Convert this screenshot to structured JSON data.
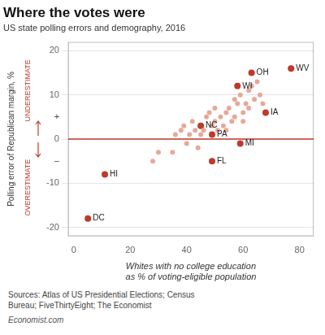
{
  "chart_data": {
    "type": "scatter",
    "title": "Where the votes were",
    "subtitle": "US state polling errors and demography, 2016",
    "xlabel": "Whites with no college education\nas % of voting-eligible population",
    "ylabel": "Polling error of Republican margin, %",
    "source": "Sources: Atlas of US Presidential Elections; Census\nBureau; FiveThirtyEight; The Economist",
    "footer": "Economist.com",
    "x": [
      5,
      11,
      45,
      49,
      49,
      59,
      58,
      63,
      68,
      77,
      28,
      30,
      35,
      36,
      38,
      39,
      40,
      41,
      42,
      43,
      44,
      45,
      46,
      47,
      48,
      49,
      50,
      50,
      51,
      52,
      53,
      54,
      54,
      55,
      56,
      57,
      57,
      58,
      59,
      60,
      60,
      61,
      62,
      62,
      63,
      64,
      65,
      66,
      67
    ],
    "values": [
      -18,
      -8,
      3,
      1,
      -5,
      -1,
      12,
      15,
      6,
      16,
      -5,
      -3,
      -3,
      1,
      2,
      3,
      -1,
      1,
      4,
      2,
      -2,
      1,
      2,
      5,
      6,
      3,
      4,
      7,
      2,
      5,
      3,
      6,
      2,
      7,
      4,
      9,
      5,
      8,
      10,
      6,
      4,
      8,
      11,
      7,
      12,
      9,
      13,
      10,
      8
    ],
    "colors": [
      "#c0392b",
      "#c0392b",
      "#c0392b",
      "#c0392b",
      "#c0392b",
      "#c0392b",
      "#c0392b",
      "#c0392b",
      "#c0392b",
      "#c0392b",
      "#e8a898",
      "#e8a898",
      "#e8a898",
      "#e8a898",
      "#e8a898",
      "#e8a898",
      "#e8a898",
      "#e8a898",
      "#e8a898",
      "#e8a898",
      "#e8a898",
      "#e8a898",
      "#e8a898",
      "#e8a898",
      "#e8a898",
      "#e8a898",
      "#e8a898",
      "#e8a898",
      "#e8a898",
      "#e8a898",
      "#e8a898",
      "#e8a898",
      "#e8a898",
      "#e8a898",
      "#e8a898",
      "#e8a898",
      "#e8a898",
      "#e8a898",
      "#e8a898",
      "#e8a898",
      "#e8a898",
      "#e8a898",
      "#e8a898",
      "#e8a898",
      "#e8a898",
      "#e8a898",
      "#e8a898",
      "#e8a898",
      "#e8a898"
    ],
    "xlim": [
      -2,
      85
    ],
    "ylim": [
      -22,
      22
    ],
    "xticks": [
      0,
      20,
      40,
      60,
      80
    ],
    "yticks": [
      -20,
      -10,
      0,
      10,
      20
    ],
    "grid": "y",
    "reference_line": {
      "y": 0,
      "color": "#c0392b"
    },
    "annotations": [
      {
        "text": "DC",
        "x": 5,
        "y": -18
      },
      {
        "text": "HI",
        "x": 11,
        "y": -8
      },
      {
        "text": "NC",
        "x": 45,
        "y": 3
      },
      {
        "text": "PA",
        "x": 49,
        "y": 1
      },
      {
        "text": "FL",
        "x": 49,
        "y": -5
      },
      {
        "text": "MI",
        "x": 59,
        "y": -1
      },
      {
        "text": "WI",
        "x": 58,
        "y": 12
      },
      {
        "text": "OH",
        "x": 63,
        "y": 15
      },
      {
        "text": "IA",
        "x": 68,
        "y": 6
      },
      {
        "text": "WV",
        "x": 77,
        "y": 16
      },
      {
        "text": "+",
        "y": 5
      },
      {
        "text": "–",
        "y": -5
      },
      {
        "text": "UNDERESTIMATE",
        "color": "#c0392b",
        "side": "above"
      },
      {
        "text": "OVERESTIMATE",
        "color": "#c0392b",
        "side": "below"
      }
    ]
  }
}
